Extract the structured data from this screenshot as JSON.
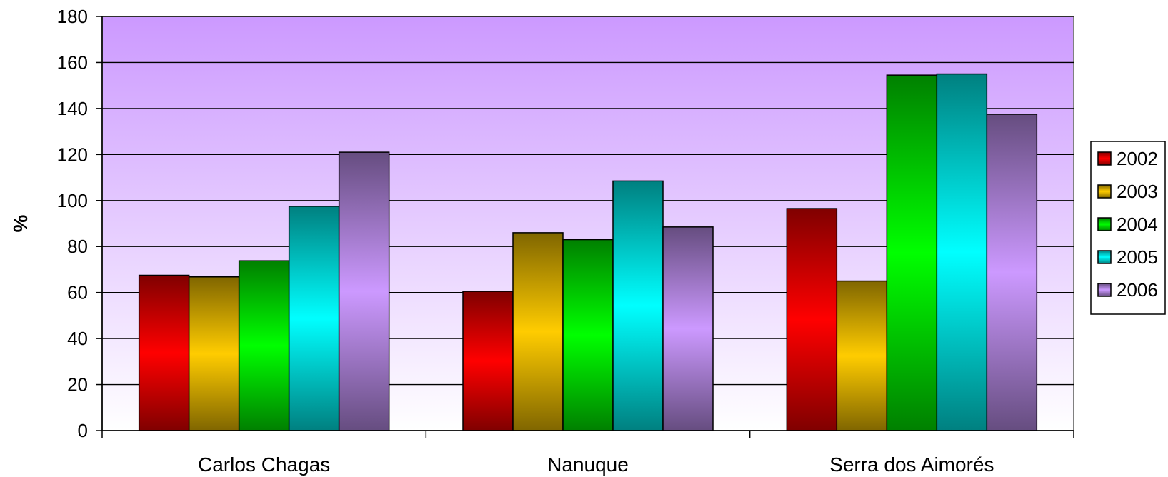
{
  "chart_data": {
    "type": "bar",
    "categories": [
      "Carlos Chagas",
      "Nanuque",
      "Serra dos Aimorés"
    ],
    "series": [
      {
        "name": "2002",
        "values": [
          67.5,
          60.5,
          96.5
        ],
        "color": "#ff0000"
      },
      {
        "name": "2003",
        "values": [
          66.8,
          86.0,
          65.0
        ],
        "color": "#ffcc00"
      },
      {
        "name": "2004",
        "values": [
          73.8,
          83.0,
          154.5
        ],
        "color": "#00ff00"
      },
      {
        "name": "2005",
        "values": [
          97.5,
          108.5,
          155.0
        ],
        "color": "#00ffff"
      },
      {
        "name": "2006",
        "values": [
          121.0,
          88.5,
          137.5
        ],
        "color": "#cc99ff"
      }
    ],
    "xlabel": "",
    "ylabel": "%",
    "ylim": [
      0,
      180
    ],
    "yticks": [
      0,
      20,
      40,
      60,
      80,
      100,
      120,
      140,
      160,
      180
    ],
    "grid": true,
    "legend_position": "right",
    "plot_background": [
      "#cc99ff",
      "#ffffff"
    ]
  }
}
